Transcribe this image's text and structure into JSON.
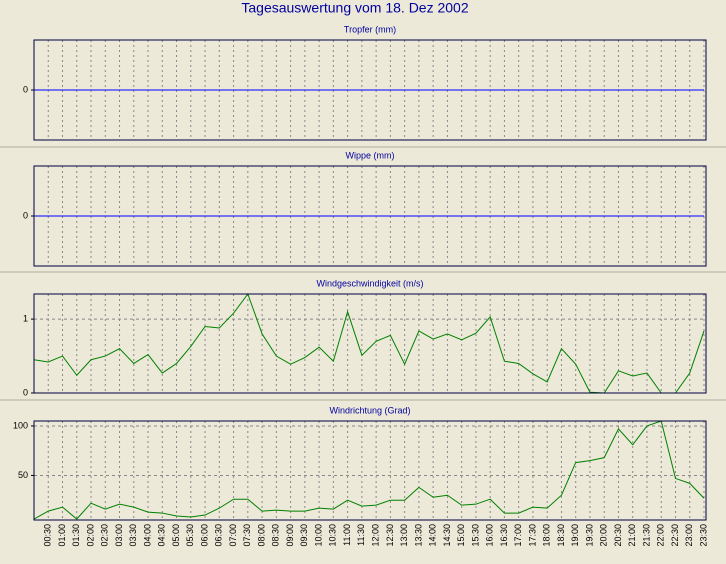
{
  "title": "Tagesauswertung vom 18. Dez 2002",
  "chart_data": [
    {
      "type": "line",
      "title": "Tropfer (mm)",
      "ylim": [
        -1,
        1
      ],
      "yticks": [
        0
      ],
      "grid": true,
      "series": [
        {
          "color": "#0000ff",
          "values": [
            0,
            0,
            0,
            0,
            0,
            0,
            0,
            0,
            0,
            0,
            0,
            0,
            0,
            0,
            0,
            0,
            0,
            0,
            0,
            0,
            0,
            0,
            0,
            0,
            0,
            0,
            0,
            0,
            0,
            0,
            0,
            0,
            0,
            0,
            0,
            0,
            0,
            0,
            0,
            0,
            0,
            0,
            0,
            0,
            0,
            0,
            0,
            0
          ]
        }
      ]
    },
    {
      "type": "line",
      "title": "Wippe (mm)",
      "ylim": [
        -1,
        1
      ],
      "yticks": [
        0
      ],
      "grid": true,
      "series": [
        {
          "color": "#0000ff",
          "values": [
            0,
            0,
            0,
            0,
            0,
            0,
            0,
            0,
            0,
            0,
            0,
            0,
            0,
            0,
            0,
            0,
            0,
            0,
            0,
            0,
            0,
            0,
            0,
            0,
            0,
            0,
            0,
            0,
            0,
            0,
            0,
            0,
            0,
            0,
            0,
            0,
            0,
            0,
            0,
            0,
            0,
            0,
            0,
            0,
            0,
            0,
            0,
            0
          ]
        }
      ]
    },
    {
      "type": "line",
      "title": "Windgeschwindigkeit (m/s)",
      "ylim": [
        0,
        1.34
      ],
      "yticks": [
        0,
        1
      ],
      "grid": true,
      "series": [
        {
          "color": "#008000",
          "values": [
            0.45,
            0.42,
            0.5,
            0.24,
            0.45,
            0.5,
            0.6,
            0.4,
            0.52,
            0.27,
            0.4,
            0.63,
            0.9,
            0.88,
            1.08,
            1.34,
            0.8,
            0.5,
            0.39,
            0.48,
            0.62,
            0.43,
            1.1,
            0.51,
            0.7,
            0.78,
            0.39,
            0.84,
            0.73,
            0.8,
            0.72,
            0.81,
            1.03,
            0.43,
            0.4,
            0.26,
            0.15,
            0.6,
            0.39,
            0.01,
            0,
            0.3,
            0.23,
            0.27,
            0,
            0,
            0.27,
            0.84
          ]
        }
      ]
    },
    {
      "type": "line",
      "title": "Windrichtung (Grad)",
      "ylim": [
        5,
        105
      ],
      "yticks": [
        50,
        100
      ],
      "grid": true,
      "categories": [
        null,
        "00:30",
        "01:00",
        "01:30",
        "02:00",
        "02:30",
        "03:00",
        "03:30",
        "04:00",
        "04:30",
        "05:00",
        "05:30",
        "06:00",
        "06:30",
        "07:00",
        "07:30",
        "08:00",
        "08:30",
        "09:00",
        "09:30",
        "10:00",
        "10:30",
        "11:00",
        "11:30",
        "12:00",
        "12:30",
        "13:00",
        "13:30",
        "14:00",
        "14:30",
        "15:00",
        "15:30",
        "16:00",
        "16:30",
        "17:00",
        "17:30",
        "18:00",
        "18:30",
        "19:00",
        "19:30",
        "20:00",
        "20:30",
        "21:00",
        "21:30",
        "22:00",
        "22:30",
        "23:00",
        "23:30"
      ],
      "series": [
        {
          "color": "#008000",
          "values": [
            6,
            14,
            18,
            6,
            22,
            16,
            21,
            18,
            13,
            12,
            9,
            8,
            10,
            17,
            26,
            26,
            14,
            15,
            14,
            14,
            17,
            16,
            25,
            19,
            20,
            25,
            25,
            38,
            28,
            30,
            20,
            21,
            26,
            12,
            12,
            18,
            17,
            30,
            63,
            65,
            68,
            97,
            81,
            100,
            105,
            47,
            42,
            27
          ]
        }
      ]
    }
  ]
}
